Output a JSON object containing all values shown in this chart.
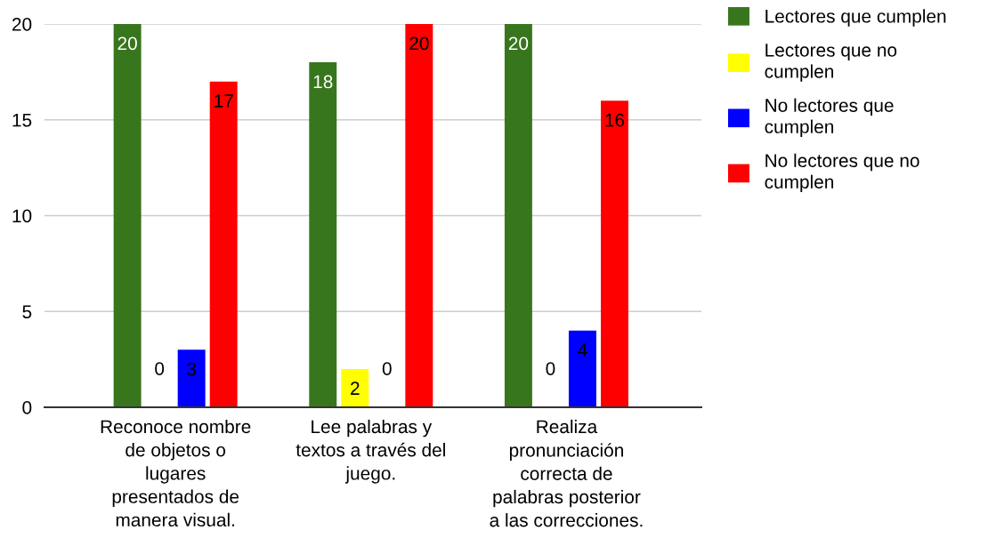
{
  "chart_data": {
    "type": "bar",
    "categories": [
      "Reconoce nombre\nde objetos o\nlugares\npresentados de\nmanera visual.",
      "Lee palabras y\ntextos a través del\njuego.",
      "Realiza\npronunciación\ncorrecta de\npalabras posterior\na las correcciones."
    ],
    "series": [
      {
        "name": "Lectores que cumplen",
        "color": "#38761d",
        "values": [
          20,
          18,
          20
        ]
      },
      {
        "name": "Lectores que no\ncumplen",
        "color": "#ffff00",
        "values": [
          0,
          2,
          0
        ]
      },
      {
        "name": "No lectores que\ncumplen",
        "color": "#0000ff",
        "values": [
          3,
          0,
          4
        ]
      },
      {
        "name": "No lectores que no\ncumplen",
        "color": "#ff0000",
        "values": [
          17,
          20,
          16
        ]
      }
    ],
    "ylim": [
      0,
      20
    ],
    "yticks": [
      0,
      5,
      10,
      15,
      20
    ],
    "grid": "y",
    "legend": "top right",
    "data_labels": true
  }
}
